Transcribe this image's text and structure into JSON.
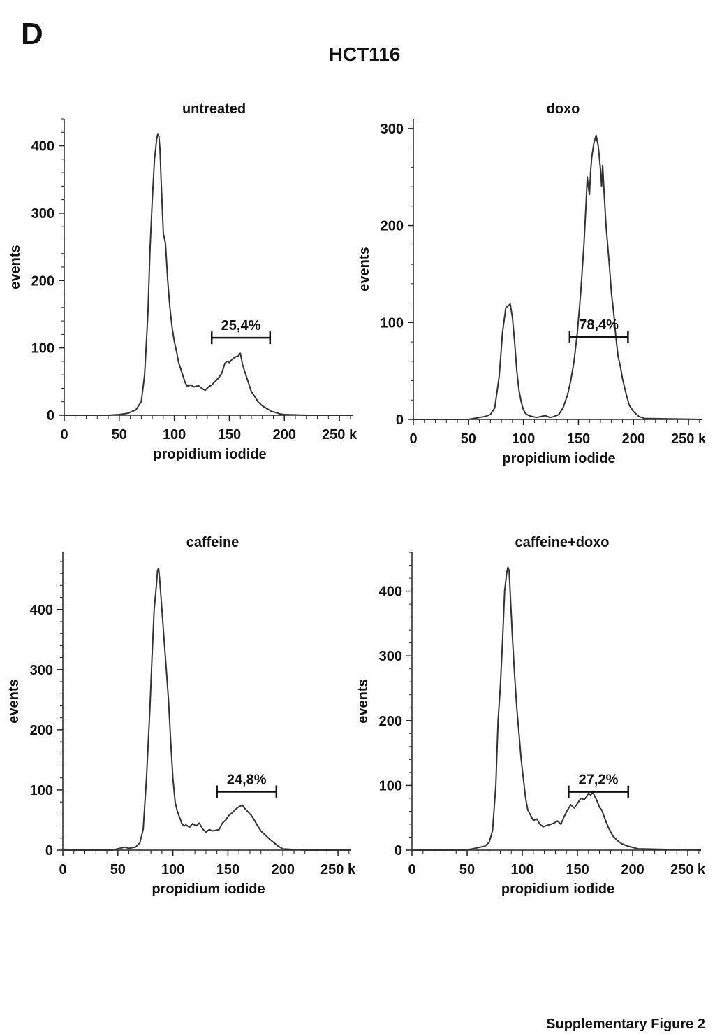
{
  "panel_letter": "D",
  "figure_title": "HCT116",
  "footer_text": "Supplementary Figure 2",
  "colors": {
    "line": "#333333",
    "axis": "#222222"
  },
  "chart_data": [
    {
      "type": "line",
      "title": "untreated",
      "xlabel": "propidium iodide",
      "ylabel": "events",
      "xlim": [
        0,
        262
      ],
      "ylim": [
        0,
        440
      ],
      "x_ticks": [
        0,
        50,
        100,
        150,
        200,
        250
      ],
      "x_tick_labels": [
        "0",
        "50",
        "100",
        "150",
        "200",
        "250 k"
      ],
      "y_ticks": [
        0,
        100,
        200,
        300,
        400
      ],
      "y_tick_labels": [
        "0",
        "100",
        "200",
        "300",
        "400"
      ],
      "gate": {
        "label": "25,4%",
        "x_start": 134,
        "x_end": 187,
        "y": 115
      },
      "x": [
        0,
        40,
        50,
        58,
        65,
        70,
        73,
        76,
        78,
        80,
        82,
        84,
        85,
        86,
        87,
        88,
        90,
        92,
        94,
        96,
        98,
        100,
        102,
        104,
        106,
        108,
        110,
        112,
        115,
        118,
        122,
        125,
        128,
        131,
        134,
        137,
        140,
        143,
        146,
        148,
        150,
        152,
        154,
        156,
        158,
        160,
        162,
        164,
        166,
        168,
        170,
        173,
        176,
        180,
        184,
        188,
        192,
        196,
        200,
        220,
        262
      ],
      "y": [
        0,
        0,
        1,
        3,
        8,
        20,
        60,
        150,
        250,
        320,
        380,
        410,
        418,
        414,
        395,
        350,
        270,
        255,
        200,
        160,
        130,
        110,
        95,
        78,
        68,
        58,
        48,
        43,
        45,
        42,
        44,
        40,
        37,
        42,
        45,
        50,
        55,
        62,
        77,
        80,
        78,
        82,
        85,
        87,
        88,
        92,
        75,
        65,
        55,
        45,
        35,
        28,
        20,
        14,
        10,
        6,
        4,
        2,
        1,
        0,
        0
      ]
    },
    {
      "type": "line",
      "title": "doxo",
      "xlabel": "propidium iodide",
      "ylabel": "events",
      "xlim": [
        0,
        262
      ],
      "ylim": [
        0,
        310
      ],
      "x_ticks": [
        0,
        50,
        100,
        150,
        200,
        250
      ],
      "x_tick_labels": [
        "0",
        "50",
        "100",
        "150",
        "200",
        "250 k"
      ],
      "y_ticks": [
        0,
        100,
        200,
        300
      ],
      "y_tick_labels": [
        "0",
        "100",
        "200",
        "300"
      ],
      "gate": {
        "label": "78,4%",
        "x_start": 142,
        "x_end": 195,
        "y": 85
      },
      "x": [
        0,
        50,
        55,
        60,
        65,
        70,
        74,
        78,
        81,
        84,
        86,
        88,
        90,
        92,
        94,
        96,
        98,
        100,
        102,
        105,
        108,
        112,
        116,
        120,
        124,
        128,
        132,
        136,
        140,
        143,
        146,
        149,
        152,
        155,
        157,
        158,
        159,
        160,
        161,
        162,
        164,
        166,
        168,
        170,
        171,
        172,
        173,
        175,
        178,
        180,
        182,
        184,
        186,
        188,
        190,
        193,
        196,
        200,
        205,
        210,
        262
      ],
      "y": [
        0,
        0,
        1,
        2,
        3,
        5,
        12,
        45,
        90,
        115,
        117,
        119,
        105,
        80,
        50,
        30,
        18,
        10,
        6,
        4,
        3,
        2,
        3,
        4,
        2,
        3,
        5,
        12,
        25,
        40,
        60,
        90,
        130,
        180,
        225,
        250,
        240,
        232,
        255,
        270,
        285,
        293,
        282,
        258,
        240,
        262,
        240,
        200,
        160,
        130,
        110,
        85,
        65,
        55,
        42,
        28,
        15,
        8,
        3,
        1,
        0
      ]
    },
    {
      "type": "line",
      "title": "caffeine",
      "xlabel": "propidium iodide",
      "ylabel": "events",
      "xlim": [
        0,
        262
      ],
      "ylim": [
        0,
        495
      ],
      "x_ticks": [
        0,
        50,
        100,
        150,
        200,
        250
      ],
      "x_tick_labels": [
        "0",
        "50",
        "100",
        "150",
        "200",
        "250 k"
      ],
      "y_ticks": [
        0,
        100,
        200,
        300,
        400
      ],
      "y_tick_labels": [
        "0",
        "100",
        "200",
        "300",
        "400"
      ],
      "gate": {
        "label": "24,8%",
        "x_start": 140,
        "x_end": 194,
        "y": 97
      },
      "x": [
        0,
        45,
        52,
        56,
        60,
        66,
        70,
        73,
        76,
        79,
        81,
        83,
        85,
        86,
        87,
        88,
        90,
        92,
        94,
        96,
        98,
        100,
        102,
        104,
        106,
        108,
        110,
        112,
        115,
        118,
        121,
        124,
        127,
        130,
        133,
        136,
        139,
        142,
        145,
        148,
        151,
        154,
        157,
        160,
        163,
        165,
        167,
        169,
        171,
        174,
        177,
        180,
        184,
        188,
        192,
        196,
        200,
        220,
        262
      ],
      "y": [
        0,
        0,
        3,
        5,
        3,
        5,
        12,
        35,
        120,
        230,
        320,
        400,
        440,
        465,
        468,
        450,
        400,
        350,
        300,
        250,
        180,
        120,
        80,
        65,
        55,
        45,
        40,
        42,
        38,
        44,
        40,
        45,
        35,
        30,
        34,
        32,
        33,
        34,
        45,
        50,
        58,
        62,
        68,
        72,
        75,
        70,
        66,
        62,
        58,
        50,
        40,
        32,
        25,
        18,
        12,
        6,
        2,
        0,
        0
      ]
    },
    {
      "type": "line",
      "title": "caffeine+doxo",
      "xlabel": "propidium iodide",
      "ylabel": "events",
      "xlim": [
        0,
        262
      ],
      "ylim": [
        0,
        460
      ],
      "x_ticks": [
        0,
        50,
        100,
        150,
        200,
        250
      ],
      "x_tick_labels": [
        "0",
        "50",
        "100",
        "150",
        "200",
        "250 k"
      ],
      "y_ticks": [
        0,
        100,
        200,
        300,
        400
      ],
      "y_tick_labels": [
        "0",
        "100",
        "200",
        "300",
        "400"
      ],
      "gate": {
        "label": "27,2%",
        "x_start": 142,
        "x_end": 196,
        "y": 90
      },
      "x": [
        0,
        48,
        55,
        60,
        66,
        70,
        73,
        76,
        78,
        80,
        82,
        84,
        86,
        87,
        88,
        89,
        91,
        93,
        95,
        97,
        99,
        101,
        103,
        105,
        108,
        110,
        113,
        116,
        119,
        122,
        126,
        129,
        132,
        135,
        138,
        141,
        144,
        147,
        150,
        153,
        156,
        158,
        160,
        162,
        164,
        166,
        168,
        170,
        172,
        175,
        178,
        182,
        186,
        190,
        196,
        205,
        262
      ],
      "y": [
        0,
        0,
        2,
        4,
        6,
        12,
        30,
        100,
        200,
        250,
        320,
        400,
        430,
        437,
        432,
        400,
        330,
        270,
        220,
        180,
        140,
        110,
        80,
        62,
        52,
        46,
        48,
        40,
        36,
        38,
        40,
        42,
        45,
        40,
        52,
        62,
        70,
        65,
        72,
        80,
        78,
        82,
        88,
        85,
        90,
        82,
        75,
        66,
        62,
        48,
        35,
        22,
        15,
        10,
        6,
        2,
        0
      ]
    }
  ]
}
